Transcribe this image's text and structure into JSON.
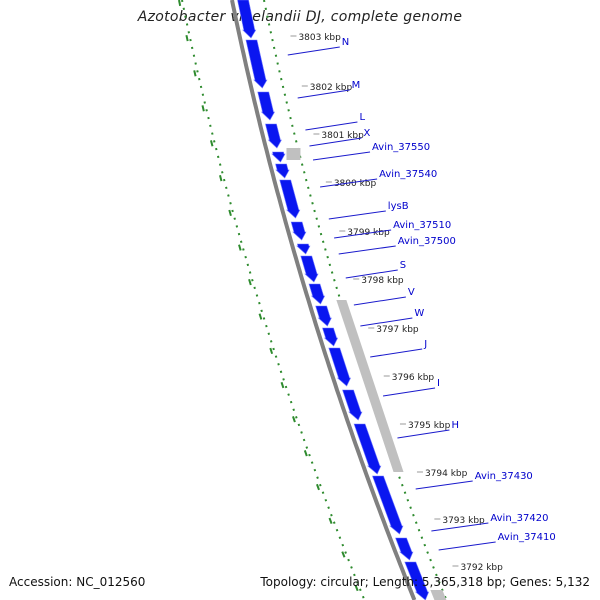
{
  "title": "Azotobacter vinelandii DJ, complete genome",
  "footer": {
    "accession": "Accession: NC_012560",
    "summary": "Topology: circular; Length: 5,365,318 bp; Genes: 5,132"
  },
  "colors": {
    "gene": "#0a16f0",
    "gene_shade": "#6f78ff",
    "rna": "#c0c0c0",
    "backbone": "#808080",
    "tick": "#2e8b2e",
    "label_link": "#1a1acc",
    "label_text": "#0000cc",
    "ruler_text": "#222222"
  },
  "ruler_labels": [
    "3803 kbp",
    "3802 kbp",
    "3801 kbp",
    "3800 kbp",
    "3799 kbp",
    "3798 kbp",
    "3797 kbp",
    "3796 kbp",
    "3795 kbp",
    "3794 kbp",
    "3793 kbp",
    "3792 kbp"
  ],
  "gene_labels": [
    "N",
    "M",
    "L",
    "X",
    "Avin_37550",
    "Avin_37540",
    "lysB",
    "Avin_37510",
    "Avin_37500",
    "S",
    "V",
    "W",
    "J",
    "I",
    "H",
    "Avin_37430",
    "Avin_37420",
    "Avin_37410"
  ]
}
